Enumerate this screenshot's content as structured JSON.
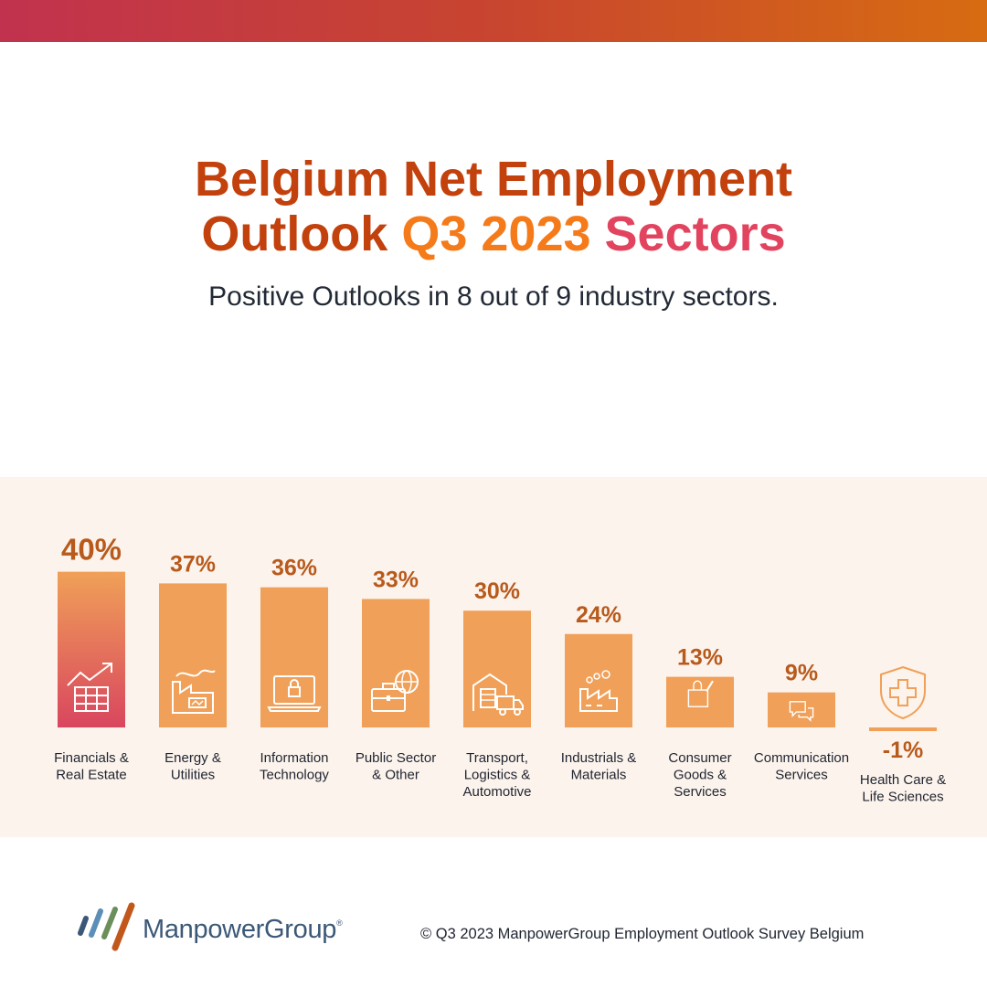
{
  "header": {
    "title_part1": "Belgium Net Employment",
    "title_part2": "Outlook",
    "title_highlight1": "Q3 2023",
    "title_highlight2": "Sectors",
    "subtitle": "Positive Outlooks in 8 out of 9 industry sectors."
  },
  "colors": {
    "title": "#c2410c",
    "highlight1": "#f57a19",
    "highlight2": "#e2445f",
    "bar": "#f0a058",
    "bar_top_sector": [
      "#f0a058",
      "#d9465f"
    ],
    "value_label": "#b85a1c",
    "panel": "#fcf3ec"
  },
  "chart_data": {
    "type": "bar",
    "categories": [
      [
        "Financials &",
        "Real Estate"
      ],
      [
        "Energy &",
        "Utilities"
      ],
      [
        "Information",
        "Technology"
      ],
      [
        "Public Sector",
        "& Other"
      ],
      [
        "Transport,",
        "Logistics &",
        "Automotive"
      ],
      [
        "Industrials &",
        "Materials"
      ],
      [
        "Consumer",
        "Goods &",
        "Services"
      ],
      [
        "Communication",
        "Services"
      ],
      [
        "Health Care &",
        "Life Sciences"
      ]
    ],
    "values": [
      40,
      37,
      36,
      33,
      30,
      24,
      13,
      9,
      -1
    ],
    "value_labels": [
      "40%",
      "37%",
      "36%",
      "33%",
      "30%",
      "24%",
      "13%",
      "9%",
      "-1%"
    ],
    "icons": [
      "chart-growth-icon",
      "factory-energy-icon",
      "laptop-lock-icon",
      "briefcase-globe-icon",
      "warehouse-truck-icon",
      "factory-icon",
      "shopping-bag-icon",
      "chat-bubbles-icon",
      "shield-cross-icon"
    ],
    "ylim": [
      -1,
      40
    ],
    "title": "",
    "xlabel": "",
    "ylabel": ""
  },
  "footer": {
    "brand": "ManpowerGroup",
    "brand_mark": "®",
    "copyright": "© Q3 2023 ManpowerGroup Employment Outlook Survey Belgium"
  }
}
